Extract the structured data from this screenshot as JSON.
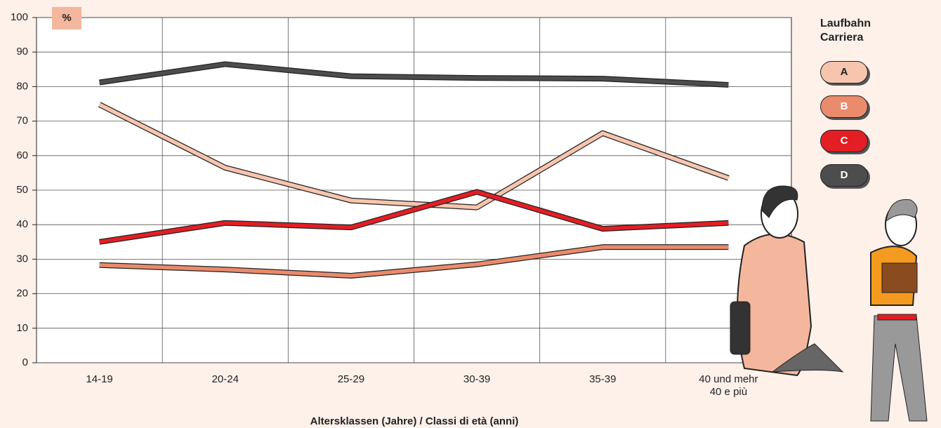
{
  "chart_data": {
    "type": "line",
    "y_axis_label": "%",
    "x_axis_label": "Altersklassen (Jahre) / Classi di età (anni)",
    "legend_title": "Laufbahn\nCarriera",
    "categories": [
      "14-19",
      "20-24",
      "25-29",
      "30-39",
      "35-39",
      "40 und mehr\n40 e più"
    ],
    "series": [
      {
        "name": "A",
        "color": "#f7c5ae",
        "values": [
          74.8,
          56.5,
          47,
          45,
          66.5,
          53.5
        ]
      },
      {
        "name": "B",
        "color": "#ea8b6c",
        "values": [
          28.3,
          27,
          25.2,
          28.5,
          33.5,
          33.5
        ]
      },
      {
        "name": "C",
        "color": "#e31e24",
        "values": [
          35,
          40.5,
          39.2,
          49.5,
          38.8,
          40.5
        ]
      },
      {
        "name": "D",
        "color": "#4d4d4d",
        "values": [
          81.2,
          86.5,
          83,
          82.5,
          82.3,
          80.5
        ]
      }
    ],
    "ylim": [
      0,
      100
    ],
    "yticks": [
      0,
      10,
      20,
      30,
      40,
      50,
      60,
      70,
      80,
      90,
      100
    ],
    "grid": true
  }
}
